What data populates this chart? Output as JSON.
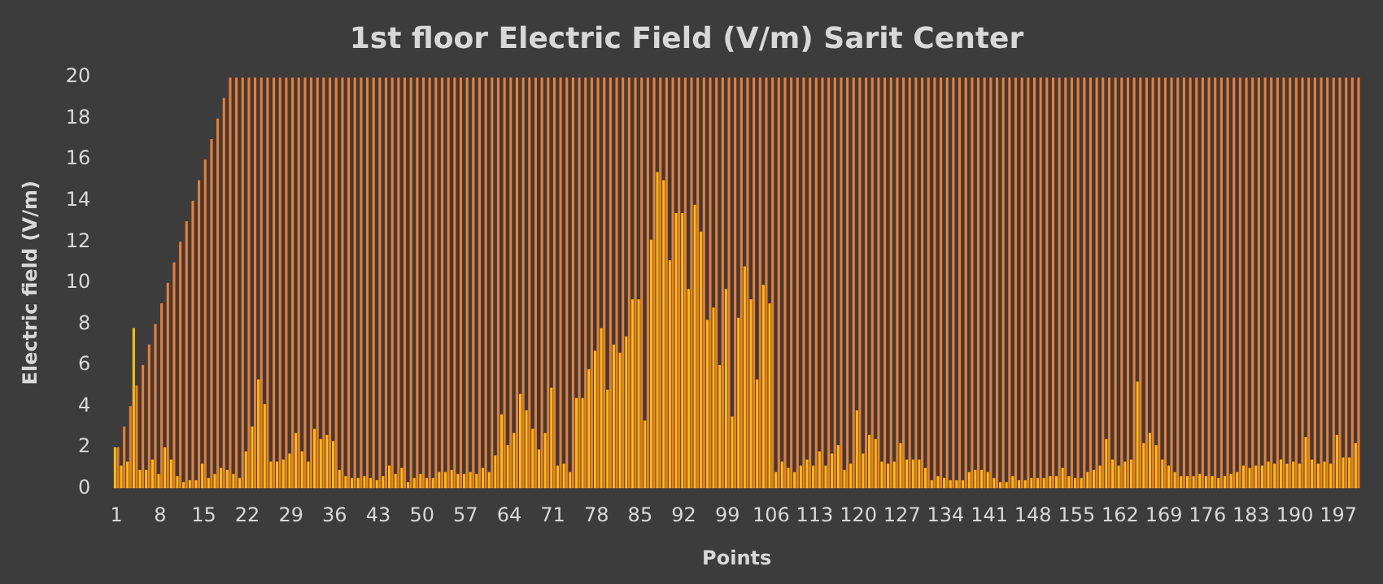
{
  "chart_data": {
    "type": "bar",
    "title": "1st floor Electric Field (V/m) Sarit Center",
    "xlabel": "Points",
    "ylabel": "Electric field (V/m)",
    "categories": [
      "1",
      null,
      null,
      null,
      null,
      null,
      null,
      "8",
      null,
      null,
      null,
      null,
      null,
      null,
      "15",
      null,
      null,
      null,
      null,
      null,
      null,
      "22",
      null,
      null,
      null,
      null,
      null,
      null,
      "29",
      null,
      null,
      null,
      null,
      null,
      null,
      "36",
      null,
      null,
      null,
      null,
      null,
      null,
      "43",
      null,
      null,
      null,
      null,
      null,
      null,
      "50",
      null,
      null,
      null,
      null,
      null,
      null,
      "57",
      null,
      null,
      null,
      null,
      null,
      null,
      "64",
      null,
      null,
      null,
      null,
      null,
      null,
      "71",
      null,
      null,
      null,
      null,
      null,
      null,
      "78",
      null,
      null,
      null,
      null,
      null,
      null,
      "85",
      null,
      null,
      null,
      null,
      null,
      null,
      "92",
      null,
      null,
      null,
      null,
      null,
      null,
      "99",
      null,
      null,
      null,
      null,
      null,
      null,
      "106",
      null,
      null,
      null,
      null,
      null,
      null,
      "113",
      null,
      null,
      null,
      null,
      null,
      null,
      "120",
      null,
      null,
      null,
      null,
      null,
      null,
      "127",
      null,
      null,
      null,
      null,
      null,
      null,
      "134",
      null,
      null,
      null,
      null,
      null,
      null,
      "141",
      null,
      null,
      null,
      null,
      null,
      null,
      "148",
      null,
      null,
      null,
      null,
      null,
      null,
      "155",
      null,
      null,
      null,
      null,
      null,
      null,
      "162",
      null,
      null,
      null,
      null,
      null,
      null,
      "169",
      null,
      null,
      null,
      null,
      null,
      null,
      "176",
      null,
      null,
      null,
      null,
      null,
      null,
      "183",
      null,
      null,
      null,
      null,
      null,
      null,
      "190",
      null,
      null,
      null,
      null,
      null,
      null,
      "197",
      null,
      null,
      null
    ],
    "series": [
      {
        "color": "#ffbf00",
        "values": [
          2.0,
          1.1,
          1.3,
          7.8,
          0.9,
          0.9,
          1.4,
          0.7,
          2.0,
          1.4,
          0.6,
          0.3,
          0.4,
          0.4,
          1.2,
          0.5,
          0.7,
          1.0,
          0.9,
          0.7,
          0.5,
          1.8,
          3.0,
          5.3,
          4.1,
          1.3,
          1.3,
          1.4,
          1.7,
          2.7,
          1.8,
          1.3,
          2.9,
          2.4,
          2.6,
          2.3,
          0.9,
          0.6,
          0.5,
          0.5,
          0.6,
          0.5,
          0.4,
          0.6,
          1.1,
          0.7,
          1.0,
          0.3,
          0.5,
          0.7,
          0.5,
          0.5,
          0.8,
          0.8,
          0.9,
          0.7,
          0.7,
          0.8,
          0.7,
          1.0,
          0.8,
          1.6,
          3.6,
          2.1,
          2.7,
          4.6,
          3.8,
          2.9,
          1.9,
          2.7,
          4.9,
          1.1,
          1.2,
          0.8,
          4.4,
          4.4,
          5.8,
          6.7,
          7.8,
          4.8,
          7.0,
          6.6,
          7.4,
          9.2,
          9.2,
          3.3,
          12.1,
          15.4,
          15.0,
          11.1,
          13.4,
          13.4,
          9.7,
          13.8,
          12.5,
          8.2,
          8.8,
          6.0,
          9.7,
          3.5,
          8.3,
          10.8,
          9.2,
          5.3,
          9.9,
          9.0,
          0.8,
          1.3,
          1.0,
          0.8,
          1.1,
          1.4,
          1.1,
          1.8,
          1.1,
          1.7,
          2.1,
          0.9,
          1.2,
          3.8,
          1.7,
          2.6,
          2.4,
          1.3,
          1.2,
          1.3,
          2.2,
          1.4,
          1.4,
          1.4,
          1.0,
          0.4,
          0.6,
          0.5,
          0.4,
          0.4,
          0.4,
          0.8,
          0.9,
          0.9,
          0.8,
          0.5,
          0.3,
          0.3,
          0.6,
          0.4,
          0.4,
          0.5,
          0.5,
          0.5,
          0.6,
          0.6,
          1.0,
          0.6,
          0.5,
          0.5,
          0.8,
          0.9,
          1.1,
          2.4,
          1.4,
          1.1,
          1.3,
          1.4,
          5.2,
          2.2,
          2.7,
          2.1,
          1.4,
          1.1,
          0.8,
          0.6,
          0.6,
          0.6,
          0.7,
          0.6,
          0.6,
          0.5,
          0.6,
          0.7,
          0.8,
          1.1,
          1.0,
          1.1,
          1.1,
          1.3,
          1.2,
          1.4,
          1.2,
          1.3,
          1.2,
          2.5,
          1.4,
          1.2,
          1.3,
          1.2,
          2.6,
          1.5,
          1.5,
          2.2
        ]
      },
      {
        "color": "#f07c30",
        "values": [
          2,
          3,
          4,
          5,
          6,
          7,
          8,
          9,
          10,
          11,
          12,
          13,
          14,
          15,
          16,
          17,
          18,
          19,
          20,
          20,
          20,
          20,
          20,
          20,
          20,
          20,
          20,
          20,
          20,
          20,
          20,
          20,
          20,
          20,
          20,
          20,
          20,
          20,
          20,
          20,
          20,
          20,
          20,
          20,
          20,
          20,
          20,
          20,
          20,
          20,
          20,
          20,
          20,
          20,
          20,
          20,
          20,
          20,
          20,
          20,
          20,
          20,
          20,
          20,
          20,
          20,
          20,
          20,
          20,
          20,
          20,
          20,
          20,
          20,
          20,
          20,
          20,
          20,
          20,
          20,
          20,
          20,
          20,
          20,
          20,
          20,
          20,
          20,
          20,
          20,
          20,
          20,
          20,
          20,
          20,
          20,
          20,
          20,
          20,
          20,
          20,
          20,
          20,
          20,
          20,
          20,
          20,
          20,
          20,
          20,
          20,
          20,
          20,
          20,
          20,
          20,
          20,
          20,
          20,
          20,
          20,
          20,
          20,
          20,
          20,
          20,
          20,
          20,
          20,
          20,
          20,
          20,
          20,
          20,
          20,
          20,
          20,
          20,
          20,
          20,
          20,
          20,
          20,
          20,
          20,
          20,
          20,
          20,
          20,
          20,
          20,
          20,
          20,
          20,
          20,
          20,
          20,
          20,
          20,
          20,
          20,
          20,
          20,
          20,
          20,
          20,
          20,
          20,
          20,
          20,
          20,
          20,
          20,
          20,
          20,
          20,
          20,
          20,
          20,
          20,
          20,
          20,
          20,
          20,
          20,
          20,
          20,
          20,
          20,
          20,
          20,
          20,
          20,
          20,
          20,
          20,
          20,
          20,
          20,
          20
        ]
      }
    ],
    "ylim": [
      0,
      20
    ],
    "yticks": [
      0,
      2,
      4,
      6,
      8,
      10,
      12,
      14,
      16,
      18,
      20
    ],
    "grid": false,
    "legend": false
  }
}
